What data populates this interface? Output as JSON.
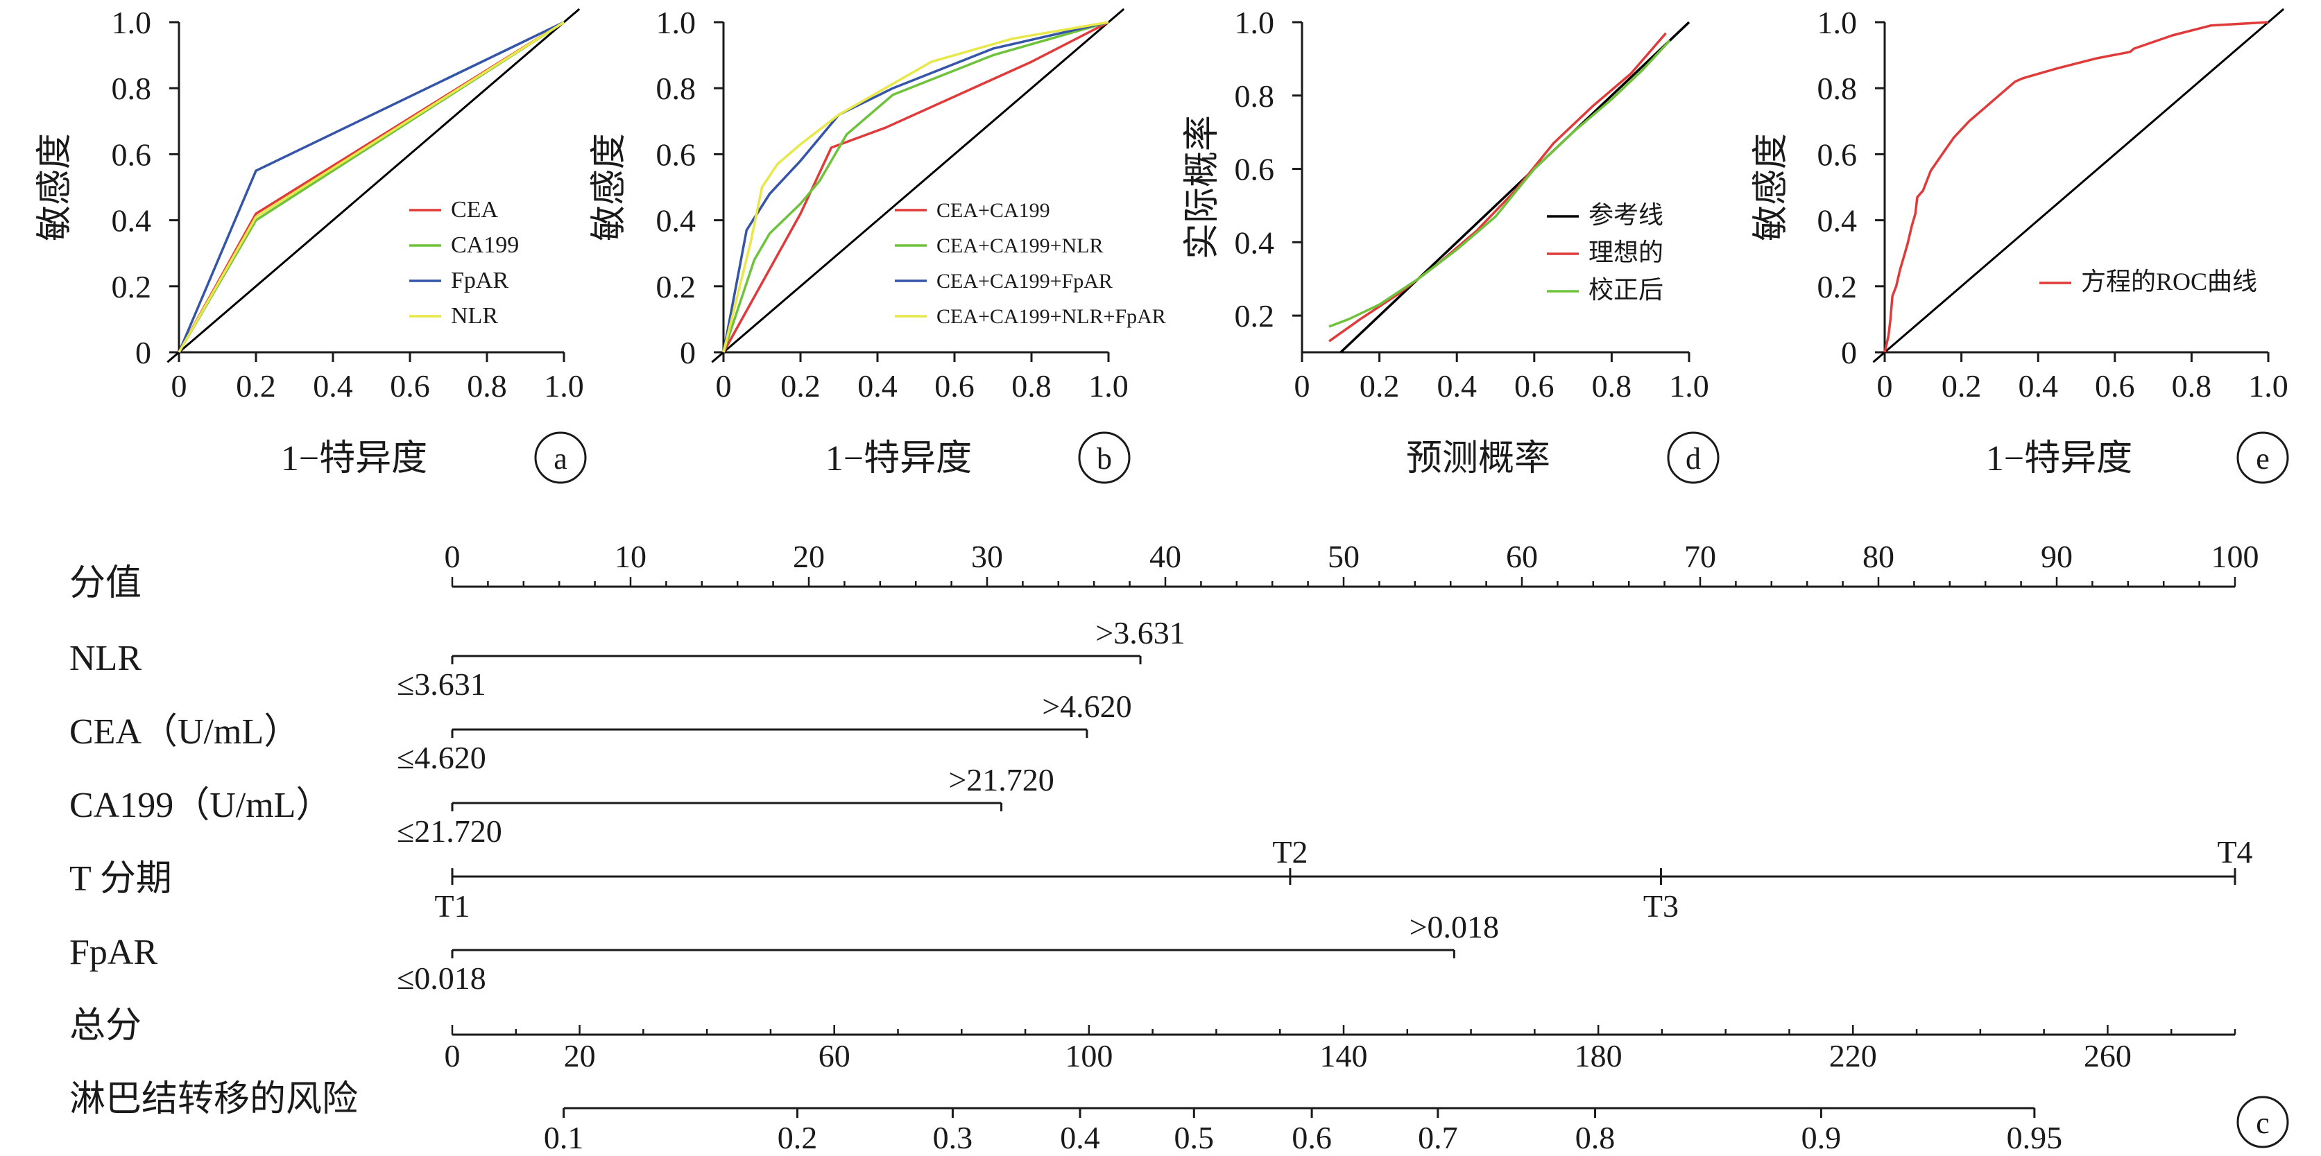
{
  "colors": {
    "ink": "#1a1a1a",
    "red": "#e03b3b",
    "green": "#6fc23b",
    "blue": "#3555a8",
    "yellow": "#e8e84a",
    "black": "#000000"
  },
  "chart_data": [
    {
      "type": "line",
      "panel": "a",
      "xlabel": "1−特异度",
      "ylabel": "敏感度",
      "xlim": [
        0,
        1
      ],
      "ylim": [
        0,
        1
      ],
      "xticks": [
        "0",
        "0.2",
        "0.4",
        "0.6",
        "0.8",
        "1.0"
      ],
      "yticks": [
        "0",
        "0.2",
        "0.4",
        "0.6",
        "0.8",
        "1.0"
      ],
      "legend_position": "bottom-right",
      "reference_line": true,
      "series": [
        {
          "name": "CEA",
          "color": "red",
          "points": [
            [
              0,
              0
            ],
            [
              0.2,
              0.42
            ],
            [
              1,
              1
            ]
          ]
        },
        {
          "name": "CA199",
          "color": "green",
          "points": [
            [
              0,
              0
            ],
            [
              0.2,
              0.4
            ],
            [
              1,
              1
            ]
          ]
        },
        {
          "name": "FpAR",
          "color": "blue",
          "points": [
            [
              0,
              0
            ],
            [
              0.2,
              0.55
            ],
            [
              1,
              1
            ]
          ]
        },
        {
          "name": "NLR",
          "color": "yellow",
          "points": [
            [
              0,
              0
            ],
            [
              0.2,
              0.41
            ],
            [
              1,
              1
            ]
          ]
        }
      ]
    },
    {
      "type": "line",
      "panel": "b",
      "xlabel": "1−特异度",
      "ylabel": "敏感度",
      "xlim": [
        0,
        1
      ],
      "ylim": [
        0,
        1
      ],
      "xticks": [
        "0",
        "0.2",
        "0.4",
        "0.6",
        "0.8",
        "1.0"
      ],
      "yticks": [
        "0",
        "0.2",
        "0.4",
        "0.6",
        "0.8",
        "1.0"
      ],
      "legend_position": "bottom-right",
      "reference_line": true,
      "series": [
        {
          "name": "CEA+CA199",
          "color": "red",
          "points": [
            [
              0,
              0
            ],
            [
              0.2,
              0.42
            ],
            [
              0.28,
              0.62
            ],
            [
              0.42,
              0.68
            ],
            [
              0.8,
              0.88
            ],
            [
              1,
              1
            ]
          ]
        },
        {
          "name": "CEA+CA199+NLR",
          "color": "green",
          "points": [
            [
              0,
              0
            ],
            [
              0.08,
              0.28
            ],
            [
              0.12,
              0.36
            ],
            [
              0.2,
              0.45
            ],
            [
              0.25,
              0.52
            ],
            [
              0.32,
              0.66
            ],
            [
              0.44,
              0.78
            ],
            [
              0.7,
              0.9
            ],
            [
              1,
              1
            ]
          ]
        },
        {
          "name": "CEA+CA199+FpAR",
          "color": "blue",
          "points": [
            [
              0,
              0
            ],
            [
              0.06,
              0.37
            ],
            [
              0.12,
              0.48
            ],
            [
              0.2,
              0.58
            ],
            [
              0.3,
              0.72
            ],
            [
              0.44,
              0.8
            ],
            [
              0.7,
              0.92
            ],
            [
              1,
              1
            ]
          ]
        },
        {
          "name": "CEA+CA199+NLR+FpAR",
          "color": "yellow",
          "points": [
            [
              0,
              0
            ],
            [
              0.07,
              0.33
            ],
            [
              0.1,
              0.5
            ],
            [
              0.14,
              0.57
            ],
            [
              0.2,
              0.63
            ],
            [
              0.3,
              0.72
            ],
            [
              0.42,
              0.8
            ],
            [
              0.54,
              0.88
            ],
            [
              0.75,
              0.95
            ],
            [
              1,
              1
            ]
          ]
        }
      ]
    },
    {
      "type": "table",
      "panel": "c",
      "rows": [
        {
          "label": "分值",
          "kind": "scale",
          "domain": [
            0,
            100
          ],
          "major": [
            0,
            10,
            20,
            30,
            40,
            50,
            60,
            70,
            80,
            90,
            100
          ],
          "major_labels": [
            "0",
            "10",
            "20",
            "30",
            "40",
            "50",
            "60",
            "70",
            "80",
            "90",
            "100"
          ],
          "minor_step": 2
        },
        {
          "label": "NLR",
          "kind": "bar",
          "start": 0,
          "end": 38.6,
          "low_label": "≤3.631",
          "high_label": ">3.631"
        },
        {
          "label": "CEA（U/mL）",
          "kind": "bar",
          "start": 0,
          "end": 35.6,
          "low_label": "≤4.620",
          "high_label": ">4.620"
        },
        {
          "label": "CA199（U/mL）",
          "kind": "bar",
          "start": 0,
          "end": 30.8,
          "low_label": "≤21.720",
          "high_label": ">21.720"
        },
        {
          "label": "T 分期",
          "kind": "stage",
          "start": 0,
          "end": 100,
          "ticks": [
            0,
            47,
            67.8,
            100
          ],
          "above": [
            {
              "text": "T2",
              "value": 47
            },
            {
              "text": "T4",
              "value": 100
            }
          ],
          "below": [
            {
              "text": "T1",
              "value": 0
            },
            {
              "text": "T3",
              "value": 67.8
            }
          ]
        },
        {
          "label": "FpAR",
          "kind": "bar",
          "start": 0,
          "end": 56.2,
          "low_label": "≤0.018",
          "high_label": ">0.018"
        },
        {
          "label": "总分",
          "kind": "total",
          "domain": [
            0,
            280
          ],
          "major": [
            0,
            20,
            60,
            100,
            140,
            180,
            220,
            260
          ],
          "major_labels": [
            "0",
            "20",
            "60",
            "100",
            "140",
            "180",
            "220",
            "260"
          ],
          "minor_step": 10
        },
        {
          "label": "淋巴结转移的风险",
          "kind": "risk",
          "total_domain": [
            0,
            280
          ],
          "ticks": [
            [
              0.1,
              17.5
            ],
            [
              0.2,
              54.2
            ],
            [
              0.3,
              78.6
            ],
            [
              0.4,
              98.6
            ],
            [
              0.5,
              116.5
            ],
            [
              0.6,
              135
            ],
            [
              0.7,
              154.8
            ],
            [
              0.8,
              179.5
            ],
            [
              0.9,
              215
            ],
            [
              0.95,
              248.5
            ]
          ],
          "tick_labels": [
            "0.1",
            "0.2",
            "0.3",
            "0.4",
            "0.5",
            "0.6",
            "0.7",
            "0.8",
            "0.9",
            "0.95"
          ]
        }
      ]
    },
    {
      "type": "line",
      "panel": "d",
      "xlabel": "预测概率",
      "ylabel": "实际概率",
      "xlim": [
        0,
        1
      ],
      "ylim": [
        0.1,
        1
      ],
      "xticks": [
        "0",
        "0.2",
        "0.4",
        "0.6",
        "0.8",
        "1.0"
      ],
      "yticks": [
        "0.2",
        "0.4",
        "0.6",
        "0.8",
        "1.0"
      ],
      "yticks_values": [
        0.2,
        0.4,
        0.6,
        0.8,
        1.0
      ],
      "legend_position": "bottom-right",
      "series": [
        {
          "name": "参考线",
          "color": "black",
          "points": [
            [
              0.1,
              0.1
            ],
            [
              1,
              1
            ]
          ]
        },
        {
          "name": "理想的",
          "color": "red",
          "points": [
            [
              0.07,
              0.13
            ],
            [
              0.15,
              0.19
            ],
            [
              0.25,
              0.26
            ],
            [
              0.35,
              0.34
            ],
            [
              0.45,
              0.43
            ],
            [
              0.55,
              0.54
            ],
            [
              0.65,
              0.67
            ],
            [
              0.75,
              0.77
            ],
            [
              0.85,
              0.86
            ],
            [
              0.94,
              0.97
            ]
          ]
        },
        {
          "name": "校正后",
          "color": "green",
          "points": [
            [
              0.07,
              0.17
            ],
            [
              0.12,
              0.19
            ],
            [
              0.2,
              0.23
            ],
            [
              0.3,
              0.3
            ],
            [
              0.4,
              0.38
            ],
            [
              0.5,
              0.47
            ],
            [
              0.6,
              0.6
            ],
            [
              0.7,
              0.7
            ],
            [
              0.8,
              0.79
            ],
            [
              0.88,
              0.87
            ],
            [
              0.95,
              0.95
            ]
          ]
        }
      ]
    },
    {
      "type": "line",
      "panel": "e",
      "xlabel": "1−特异度",
      "ylabel": "敏感度",
      "xlim": [
        0,
        1
      ],
      "ylim": [
        0,
        1
      ],
      "xticks": [
        "0",
        "0.2",
        "0.4",
        "0.6",
        "0.8",
        "1.0"
      ],
      "yticks": [
        "0",
        "0.2",
        "0.4",
        "0.6",
        "0.8",
        "1.0"
      ],
      "legend_position": "bottom-right",
      "reference_line": true,
      "series": [
        {
          "name": "方程的ROC曲线",
          "color": "red",
          "points": [
            [
              0,
              0
            ],
            [
              0.01,
              0.05
            ],
            [
              0.015,
              0.1
            ],
            [
              0.02,
              0.17
            ],
            [
              0.03,
              0.2
            ],
            [
              0.04,
              0.25
            ],
            [
              0.05,
              0.29
            ],
            [
              0.06,
              0.33
            ],
            [
              0.07,
              0.38
            ],
            [
              0.08,
              0.42
            ],
            [
              0.085,
              0.47
            ],
            [
              0.1,
              0.49
            ],
            [
              0.12,
              0.55
            ],
            [
              0.15,
              0.6
            ],
            [
              0.18,
              0.65
            ],
            [
              0.22,
              0.7
            ],
            [
              0.26,
              0.74
            ],
            [
              0.3,
              0.78
            ],
            [
              0.34,
              0.82
            ],
            [
              0.36,
              0.83
            ],
            [
              0.45,
              0.86
            ],
            [
              0.55,
              0.89
            ],
            [
              0.64,
              0.91
            ],
            [
              0.65,
              0.92
            ],
            [
              0.75,
              0.96
            ],
            [
              0.85,
              0.99
            ],
            [
              1,
              1
            ]
          ]
        }
      ]
    }
  ]
}
